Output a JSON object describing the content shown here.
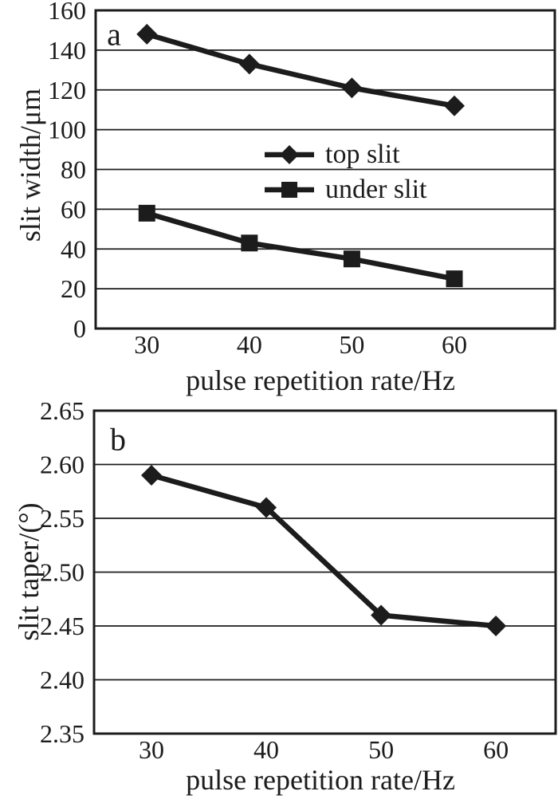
{
  "background": "#ffffff",
  "ink_color": "#1c1c1c",
  "chart_data": [
    {
      "id": "a",
      "type": "line",
      "panel_label": "a",
      "xlabel": "pulse repetition rate/Hz",
      "ylabel": "slit width/μm",
      "x": [
        30,
        40,
        50,
        60
      ],
      "xtick_labels": [
        "30",
        "40",
        "50",
        "60"
      ],
      "xlim": [
        25,
        69.8
      ],
      "ylim": [
        0,
        160
      ],
      "yticks": [
        0,
        20,
        40,
        60,
        80,
        100,
        120,
        140,
        160
      ],
      "ytick_labels": [
        "0",
        "20",
        "40",
        "60",
        "80",
        "100",
        "120",
        "140",
        "160"
      ],
      "grid": "horizontal",
      "legend_position": "inside-top-center",
      "series": [
        {
          "name": "top slit",
          "marker": "diamond",
          "values": [
            148,
            133,
            121,
            112
          ]
        },
        {
          "name": "under slit",
          "marker": "square",
          "values": [
            58,
            43,
            35,
            25
          ]
        }
      ]
    },
    {
      "id": "b",
      "type": "line",
      "panel_label": "b",
      "xlabel": "pulse repetition rate/Hz",
      "ylabel": "slit taper/(°)",
      "x": [
        30,
        40,
        50,
        60
      ],
      "xtick_labels": [
        "30",
        "40",
        "50",
        "60"
      ],
      "xlim": [
        25,
        65.2
      ],
      "ylim": [
        2.35,
        2.65
      ],
      "yticks": [
        2.35,
        2.4,
        2.45,
        2.5,
        2.55,
        2.6,
        2.65
      ],
      "ytick_labels": [
        "2.35",
        "2.40",
        "2.45",
        "2.50",
        "2.55",
        "2.60",
        "2.65"
      ],
      "grid": "horizontal",
      "legend_position": "none",
      "series": [
        {
          "name": "slit taper",
          "marker": "diamond",
          "values": [
            2.59,
            2.56,
            2.46,
            2.45
          ]
        }
      ]
    }
  ]
}
